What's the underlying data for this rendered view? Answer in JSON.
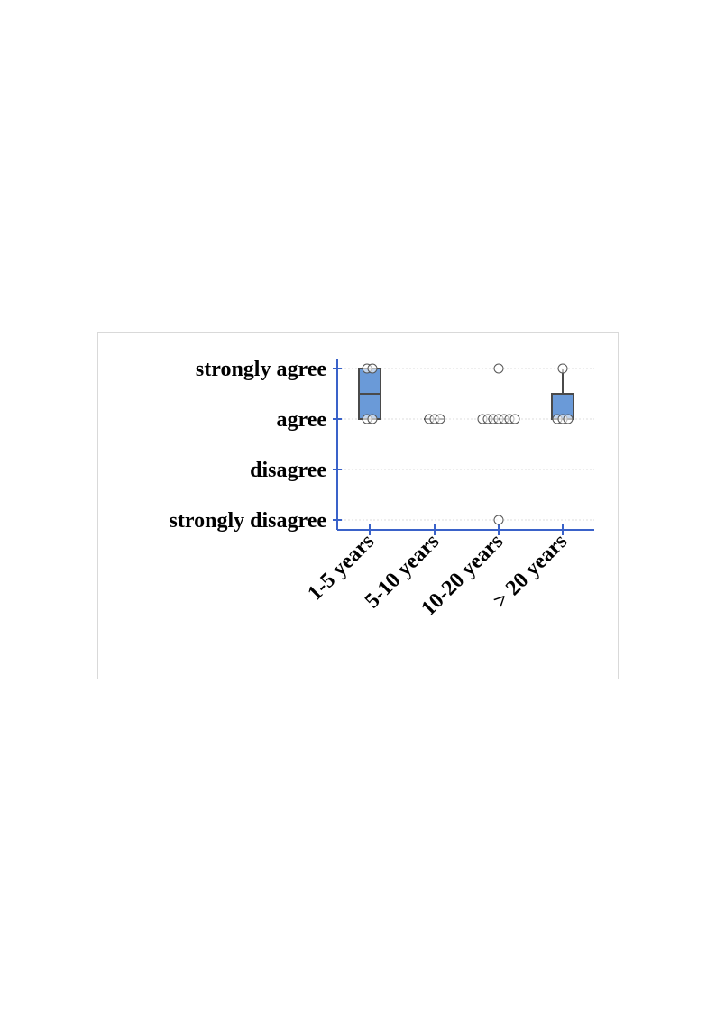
{
  "chart_data": {
    "type": "box",
    "title": "",
    "xlabel": "",
    "ylabel": "",
    "y_levels": [
      "strongly disagree",
      "disagree",
      "agree",
      "strongly agree"
    ],
    "y_values": [
      1,
      2,
      3,
      4
    ],
    "ylim": [
      1,
      4
    ],
    "grid": true,
    "categories": [
      "1-5 years",
      "5-10 years",
      "10-20 years",
      "> 20 years"
    ],
    "boxes": [
      {
        "category": "1-5 years",
        "q1": 3,
        "median": 3.5,
        "q3": 4,
        "min": 3,
        "max": 4,
        "points": [
          3,
          3,
          4,
          4
        ]
      },
      {
        "category": "5-10 years",
        "q1": 3,
        "median": 3,
        "q3": 3,
        "min": 3,
        "max": 3,
        "points": [
          3,
          3,
          3
        ]
      },
      {
        "category": "10-20 years",
        "q1": 3,
        "median": 3,
        "q3": 3,
        "min": 3,
        "max": 3,
        "points": [
          3,
          3,
          3,
          3,
          3,
          3,
          3,
          4,
          1
        ]
      },
      {
        "category": "> 20 years",
        "q1": 3,
        "median": 3,
        "q3": 3.5,
        "min": 3,
        "max": 4,
        "points": [
          3,
          3,
          3,
          4
        ]
      }
    ],
    "colors": {
      "box_fill": "#6a9ad8",
      "box_stroke": "#4a4a4a",
      "axis": "#3a62c9",
      "grid": "#dcdcdc",
      "point_stroke": "#555555"
    }
  }
}
